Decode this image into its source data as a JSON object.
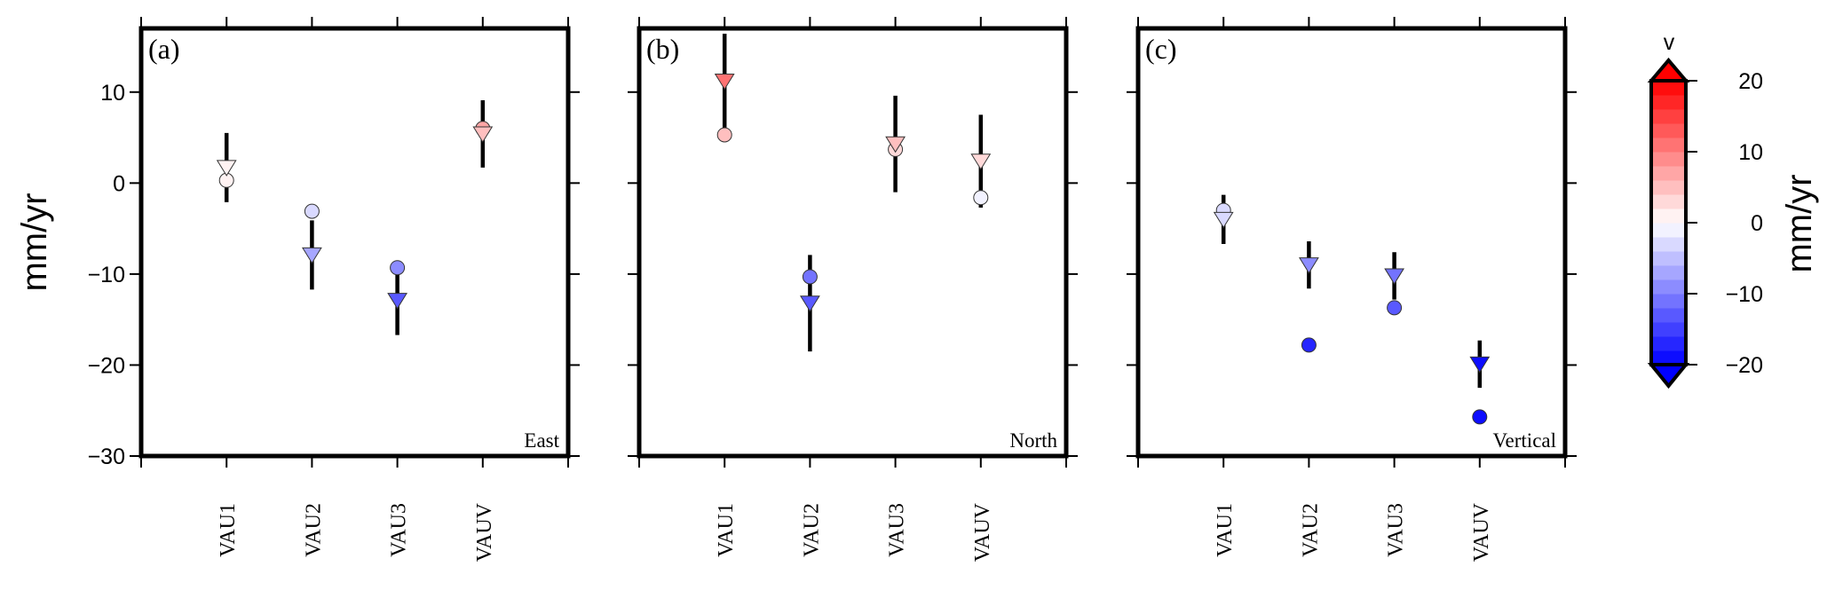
{
  "chart_data": {
    "type": "scatter",
    "ylabel": "mm/yr",
    "ylim": [
      -30,
      17
    ],
    "yticks": [
      10,
      0,
      -10,
      -20,
      -30
    ],
    "ytick_labels": [
      "10",
      "0",
      "−10",
      "−20",
      "−30"
    ],
    "categories": [
      "VAU1",
      "VAU2",
      "VAU3",
      "VAUV"
    ],
    "xlim": [
      0,
      5
    ],
    "grid": false,
    "panels": [
      {
        "tag": "(a)",
        "component": "East",
        "triangles": {
          "values": [
            1.7,
            -7.9,
            -12.9,
            5.4
          ],
          "errors": [
            3.8,
            3.8,
            3.8,
            3.7
          ]
        },
        "circles": {
          "values": [
            0.3,
            -3.1,
            -9.3,
            6.0
          ]
        }
      },
      {
        "tag": "(b)",
        "component": "North",
        "triangles": {
          "values": [
            11.2,
            -13.2,
            4.3,
            2.4
          ],
          "errors": [
            5.4,
            5.3,
            5.3,
            5.1
          ]
        },
        "circles": {
          "values": [
            5.3,
            -10.3,
            3.7,
            -1.6
          ]
        }
      },
      {
        "tag": "(c)",
        "component": "Vertical",
        "triangles": {
          "values": [
            -4.0,
            -9.0,
            -10.2,
            -19.9
          ],
          "errors": [
            2.7,
            2.6,
            2.6,
            2.6
          ]
        },
        "circles": {
          "values": [
            -3.0,
            -17.8,
            -13.7,
            -25.7
          ]
        }
      }
    ],
    "colorbar": {
      "title": "v",
      "label": "mm/yr",
      "range": [
        -20,
        20
      ],
      "step": 2,
      "ticks": [
        20,
        10,
        0,
        -10,
        -20
      ],
      "tick_labels": [
        "20",
        "10",
        "0",
        "−10",
        "−20"
      ],
      "low_color": "#0000ff",
      "mid_color": "#ffffff",
      "high_color": "#ff0000",
      "extends": "both"
    }
  }
}
